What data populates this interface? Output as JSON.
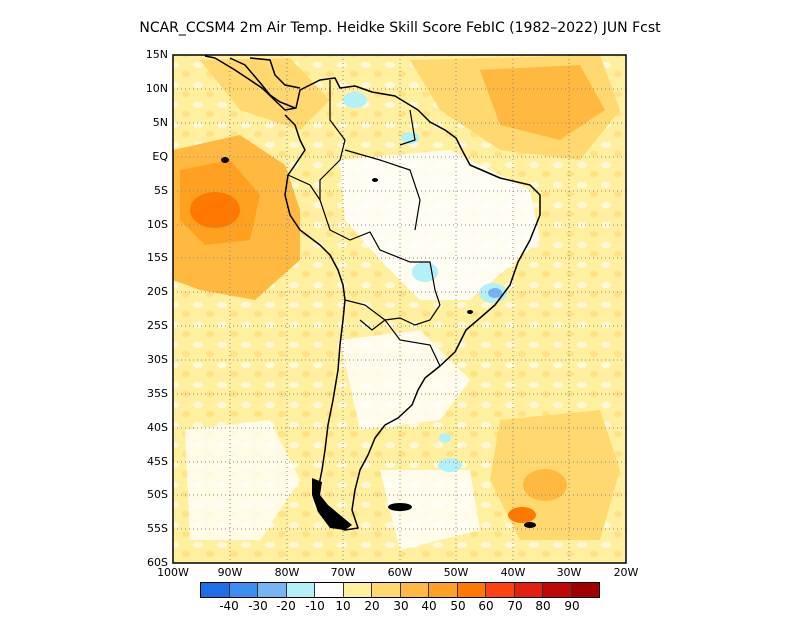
{
  "title": "NCAR_CCSM4  2m Air Temp. Heidke Skill Score FebIC (1982–2022) JUN Fcst",
  "latitude_labels": [
    "15N",
    "10N",
    "5N",
    "EQ",
    "5S",
    "10S",
    "15S",
    "20S",
    "25S",
    "30S",
    "35S",
    "40S",
    "45S",
    "50S",
    "55S",
    "60S"
  ],
  "longitude_labels": [
    "100W",
    "90W",
    "80W",
    "70W",
    "60W",
    "50W",
    "40W",
    "30W",
    "20W"
  ],
  "colorbar": {
    "colors": [
      "#1e6ee8",
      "#3c8ef0",
      "#78b4f4",
      "#b4f0f8",
      "#ffffff",
      "#fff0a0",
      "#ffd870",
      "#ffb840",
      "#ffa020",
      "#ff7800",
      "#ff4010",
      "#e02010",
      "#c00808",
      "#a00000"
    ],
    "labels": [
      "-40",
      "-30",
      "-20",
      "-10",
      "10",
      "20",
      "30",
      "40",
      "50",
      "60",
      "70",
      "80",
      "90"
    ]
  },
  "map_extent": {
    "lon_min": -100,
    "lon_max": -20,
    "lat_min": -60,
    "lat_max": 15
  }
}
